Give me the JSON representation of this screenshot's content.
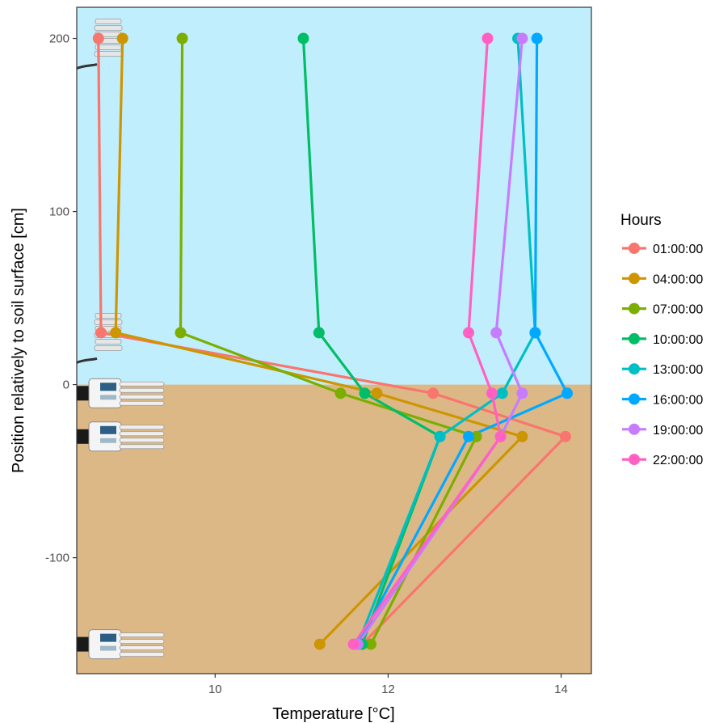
{
  "chart_data": {
    "type": "line",
    "xlabel": "Temperature [°C]",
    "ylabel": "Position relatively to soil surface [cm]",
    "xlim": [
      8.4,
      14.35
    ],
    "ylim": [
      -167,
      218
    ],
    "x_ticks": [
      10,
      12,
      14
    ],
    "y_ticks": [
      200,
      100,
      0,
      -100
    ],
    "legend_title": "Hours",
    "legend_position": "right",
    "grid": false,
    "background": {
      "air_color": "#c1eefc",
      "soil_color": "#ddb887",
      "soil_surface_y": 0
    },
    "series": [
      {
        "name": "01:00:00",
        "color": "#f8766d",
        "points": [
          [
            8.65,
            200
          ],
          [
            8.68,
            30
          ],
          [
            12.52,
            -5
          ],
          [
            14.05,
            -30
          ],
          [
            11.7,
            -150
          ]
        ]
      },
      {
        "name": "04:00:00",
        "color": "#cd9600",
        "points": [
          [
            8.93,
            200
          ],
          [
            8.85,
            30
          ],
          [
            11.87,
            -5
          ],
          [
            13.55,
            -30
          ],
          [
            11.21,
            -150
          ]
        ]
      },
      {
        "name": "07:00:00",
        "color": "#7cae00",
        "points": [
          [
            9.62,
            200
          ],
          [
            9.6,
            30
          ],
          [
            11.45,
            -5
          ],
          [
            13.02,
            -30
          ],
          [
            11.8,
            -150
          ]
        ]
      },
      {
        "name": "10:00:00",
        "color": "#00be67",
        "points": [
          [
            11.02,
            200
          ],
          [
            11.2,
            30
          ],
          [
            11.73,
            -5
          ],
          [
            12.6,
            -30
          ],
          [
            11.7,
            -150
          ]
        ]
      },
      {
        "name": "13:00:00",
        "color": "#00bfc4",
        "points": [
          [
            13.5,
            200
          ],
          [
            13.7,
            30
          ],
          [
            13.32,
            -5
          ],
          [
            12.6,
            -30
          ],
          [
            11.65,
            -150
          ]
        ]
      },
      {
        "name": "16:00:00",
        "color": "#00a9ff",
        "points": [
          [
            13.72,
            200
          ],
          [
            13.7,
            30
          ],
          [
            14.07,
            -5
          ],
          [
            12.93,
            -30
          ],
          [
            11.65,
            -150
          ]
        ]
      },
      {
        "name": "19:00:00",
        "color": "#c77cff",
        "points": [
          [
            13.55,
            200
          ],
          [
            13.25,
            30
          ],
          [
            13.55,
            -5
          ],
          [
            13.3,
            -30
          ],
          [
            11.65,
            -150
          ]
        ]
      },
      {
        "name": "22:00:00",
        "color": "#ff61c3",
        "points": [
          [
            13.15,
            200
          ],
          [
            12.93,
            30
          ],
          [
            13.2,
            -5
          ],
          [
            13.3,
            -30
          ],
          [
            11.6,
            -150
          ]
        ]
      }
    ]
  }
}
